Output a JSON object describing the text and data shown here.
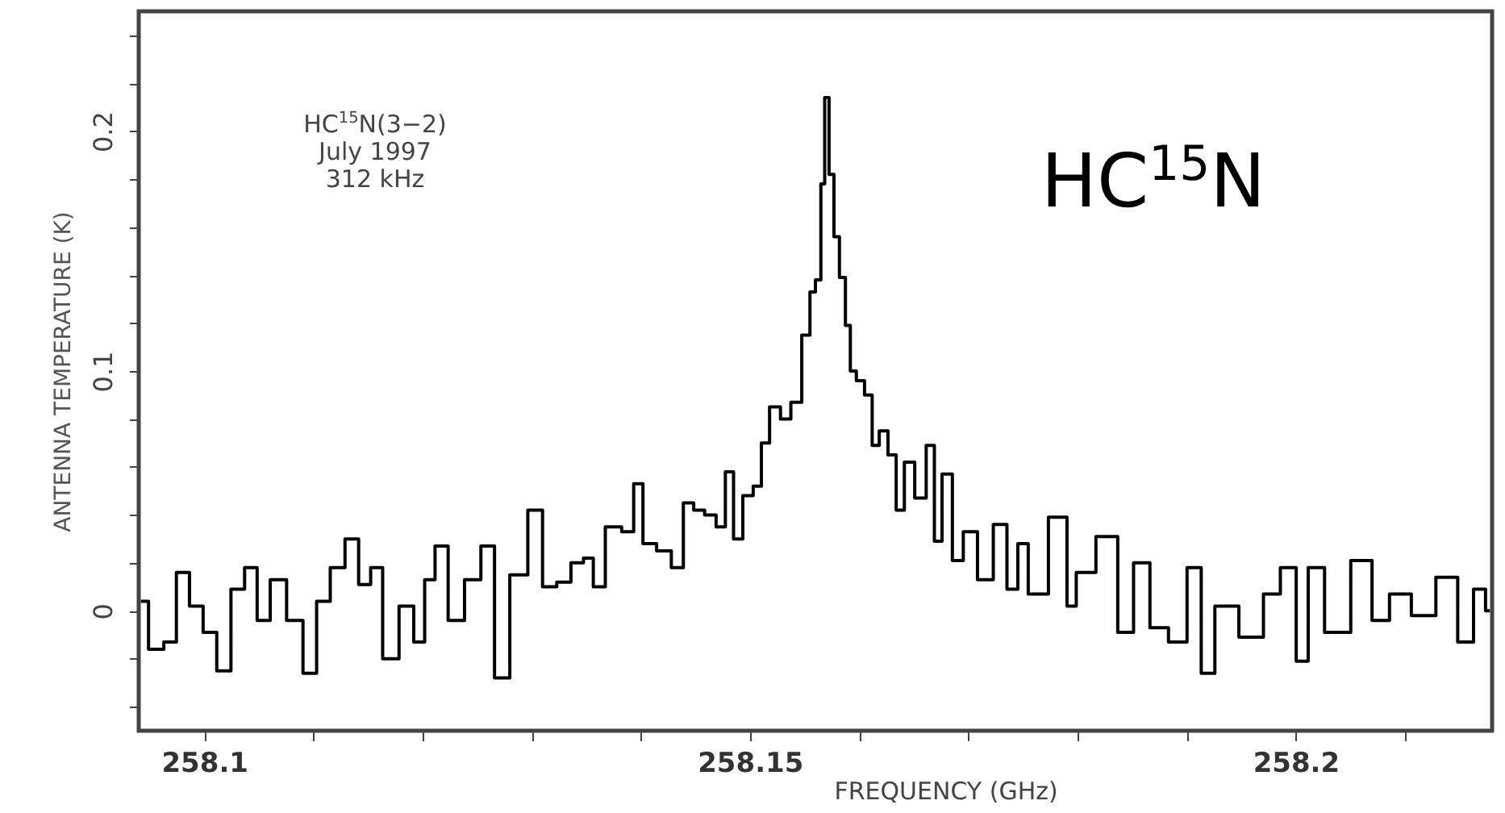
{
  "chart_data": {
    "type": "step",
    "xlabel": "FREQUENCY (GHz)",
    "ylabel": "ANTENNA TEMPERATURE (K)",
    "annotations": [
      "HC$^{15}$N(3−2)",
      "July 1997",
      "312 kHz",
      "HC$^{15}$N"
    ],
    "xlim": [
      258.094,
      258.218
    ],
    "xticks": [
      {
        "value": 258.1,
        "label": "258.1"
      },
      {
        "value": 258.11,
        "label": null
      },
      {
        "value": 258.12,
        "label": null
      },
      {
        "value": 258.13,
        "label": null
      },
      {
        "value": 258.14,
        "label": null
      },
      {
        "value": 258.15,
        "label": "258.15"
      },
      {
        "value": 258.16,
        "label": null
      },
      {
        "value": 258.17,
        "label": null
      },
      {
        "value": 258.18,
        "label": null
      },
      {
        "value": 258.19,
        "label": null
      },
      {
        "value": 258.2,
        "label": "258.2"
      },
      {
        "value": 258.21,
        "label": null
      }
    ],
    "ylim": [
      -0.05,
      0.25
    ],
    "yticks": [
      {
        "value": -0.04,
        "label": null
      },
      {
        "value": -0.02,
        "label": null
      },
      0,
      {
        "value": 0.02,
        "label": null
      },
      {
        "value": 0.04,
        "label": null
      },
      {
        "value": 0.06,
        "label": null
      },
      {
        "value": 0.08,
        "label": null
      },
      0.1,
      {
        "value": 0.12,
        "label": null
      },
      {
        "value": 0.14,
        "label": null
      },
      {
        "value": 0.16,
        "label": null
      },
      {
        "value": 0.18,
        "label": null
      },
      0.2,
      {
        "value": 0.22,
        "label": null
      },
      {
        "value": 0.24,
        "label": null
      }
    ],
    "x": [
      258.0942,
      258.0956,
      258.097,
      258.0979,
      258.0994,
      258.1004,
      258.1019,
      258.103,
      258.1044,
      258.1053,
      258.1068,
      258.1083,
      258.1098,
      258.1108,
      258.1123,
      258.1135,
      258.1148,
      258.1157,
      258.117,
      258.1187,
      258.1197,
      258.1207,
      258.1216,
      258.1231,
      258.1246,
      258.1261,
      258.1271,
      258.1289,
      258.1304,
      258.1316,
      258.133,
      258.1342,
      258.1353,
      258.136,
      258.1375,
      258.139,
      258.1397,
      258.1407,
      258.1422,
      258.1434,
      258.1444,
      258.1453,
      258.1464,
      258.1474,
      258.1481,
      258.1489,
      258.1498,
      258.1508,
      258.1513,
      258.1523,
      258.1533,
      258.1542,
      258.1553,
      258.1557,
      258.1563,
      258.1567,
      258.157,
      258.1575,
      258.1579,
      258.1585,
      258.159,
      258.1594,
      258.1601,
      258.1609,
      258.1615,
      258.1622,
      258.1631,
      258.1637,
      258.1646,
      258.1656,
      258.1667,
      258.1671,
      258.1681,
      258.169,
      258.1701,
      258.1716,
      258.173,
      258.1741,
      258.175,
      258.176,
      258.1787,
      258.1794,
      258.1804,
      258.183,
      258.1844,
      258.1859,
      258.1874,
      258.1893,
      258.1908,
      258.1919,
      258.1933,
      258.1963,
      258.1978,
      258.1994,
      258.2007,
      258.2016,
      258.2037,
      258.2064,
      258.2076,
      258.2096,
      258.2116,
      258.2141,
      258.2156,
      258.217,
      258.2178
    ],
    "values": [
      0.004,
      -0.016,
      -0.013,
      0.016,
      0.002,
      -0.009,
      -0.025,
      0.009,
      0.018,
      -0.004,
      0.013,
      -0.004,
      -0.026,
      0.004,
      0.018,
      0.03,
      0.011,
      0.018,
      -0.02,
      0.002,
      -0.013,
      0.013,
      0.027,
      -0.004,
      0.013,
      0.027,
      -0.028,
      0.015,
      0.042,
      0.01,
      0.012,
      0.02,
      0.022,
      0.01,
      0.035,
      0.033,
      0.053,
      0.028,
      0.025,
      0.018,
      0.045,
      0.042,
      0.04,
      0.035,
      0.058,
      0.03,
      0.048,
      0.052,
      0.07,
      0.085,
      0.08,
      0.087,
      0.115,
      0.133,
      0.138,
      0.178,
      0.214,
      0.182,
      0.156,
      0.139,
      0.119,
      0.1,
      0.096,
      0.09,
      0.069,
      0.075,
      0.065,
      0.042,
      0.062,
      0.047,
      0.069,
      0.029,
      0.057,
      0.021,
      0.033,
      0.013,
      0.036,
      0.009,
      0.028,
      0.007,
      0.039,
      0.002,
      0.016,
      0.031,
      -0.009,
      0.02,
      -0.007,
      -0.013,
      0.018,
      -0.026,
      0.002,
      -0.011,
      0.007,
      0.018,
      -0.021,
      0.018,
      -0.009,
      0.021,
      -0.004,
      0.007,
      -0.002,
      0.014,
      -0.013,
      0.009,
      0.0
    ],
    "color": "#000000"
  }
}
